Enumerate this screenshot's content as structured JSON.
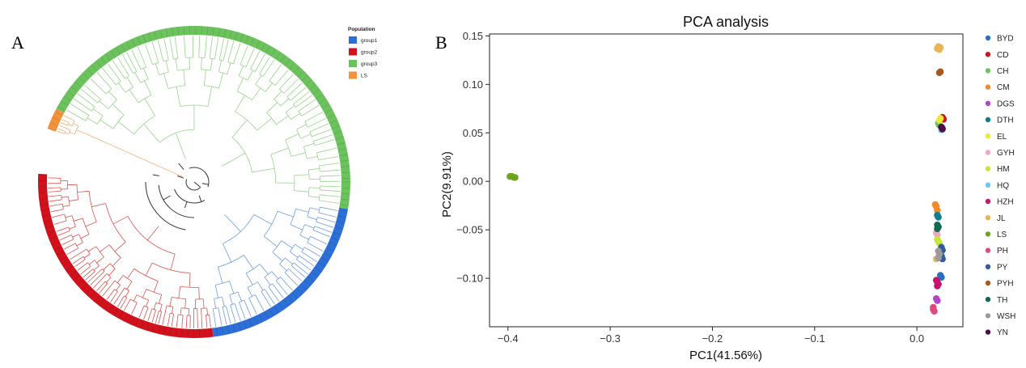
{
  "panels": {
    "a_label": "A",
    "b_label": "B"
  },
  "tree": {
    "legend_title": "Population",
    "groups": [
      {
        "key": "group1",
        "label": "group1",
        "color": "#2c6fd6",
        "line_color": "#6f9ee0"
      },
      {
        "key": "group2",
        "label": "group2",
        "color": "#d1111b",
        "line_color": "#d9534f"
      },
      {
        "key": "group3",
        "label": "group3",
        "color": "#6cc25c",
        "line_color": "#98d28c"
      },
      {
        "key": "LS",
        "label": "LS",
        "color": "#f2923b",
        "line_color": "#f2b27a"
      }
    ],
    "backbone_color": "#333333"
  },
  "chart_data": {
    "type": "scatter",
    "title": "PCA analysis",
    "xlabel": "PC1(41.56%)",
    "ylabel": "PC2(9.91%)",
    "xlim": [
      -0.418,
      0.045
    ],
    "ylim": [
      -0.15,
      0.152
    ],
    "xticks": [
      -0.4,
      -0.3,
      -0.2,
      -0.1,
      0.0
    ],
    "xtick_labels": [
      "−0.4",
      "−0.3",
      "−0.2",
      "−0.1",
      "0.0"
    ],
    "yticks": [
      0.15,
      0.1,
      0.05,
      0.0,
      -0.05,
      -0.1
    ],
    "ytick_labels": [
      "0.15",
      "0.10",
      "0.05",
      "0.00",
      "−0.05",
      "−0.10"
    ],
    "grid": false,
    "legend_position": "right",
    "series": [
      {
        "name": "BYD",
        "color": "#2e6fc0",
        "points": [
          [
            0.023,
            -0.097
          ],
          [
            0.024,
            -0.099
          ]
        ]
      },
      {
        "name": "CD",
        "color": "#c8191d",
        "points": [
          [
            0.025,
            0.066
          ],
          [
            0.026,
            0.064
          ]
        ]
      },
      {
        "name": "CH",
        "color": "#6cc25c",
        "points": [
          [
            0.021,
            0.06
          ],
          [
            0.022,
            0.058
          ]
        ]
      },
      {
        "name": "CM",
        "color": "#f08a2a",
        "points": [
          [
            0.018,
            -0.024
          ],
          [
            0.019,
            -0.026
          ],
          [
            0.02,
            -0.03
          ]
        ]
      },
      {
        "name": "DGS",
        "color": "#b046c9",
        "points": [
          [
            0.019,
            -0.121
          ],
          [
            0.02,
            -0.123
          ]
        ]
      },
      {
        "name": "DTH",
        "color": "#0f7f8c",
        "points": [
          [
            0.02,
            -0.035
          ],
          [
            0.021,
            -0.037
          ]
        ]
      },
      {
        "name": "EL",
        "color": "#ece83a",
        "points": [
          [
            0.023,
            0.065
          ],
          [
            0.022,
            0.063
          ]
        ]
      },
      {
        "name": "GYH",
        "color": "#f3a6bf",
        "points": [
          [
            0.019,
            -0.053
          ],
          [
            0.02,
            -0.055
          ]
        ]
      },
      {
        "name": "HM",
        "color": "#c5e63a",
        "points": [
          [
            0.021,
            -0.062
          ],
          [
            0.022,
            -0.064
          ],
          [
            0.02,
            -0.06
          ]
        ]
      },
      {
        "name": "HQ",
        "color": "#6fc7ef",
        "points": [
          [
            0.024,
            0.053
          ],
          [
            0.025,
            0.055
          ]
        ]
      },
      {
        "name": "HZH",
        "color": "#c8146a",
        "points": [
          [
            0.019,
            -0.102
          ],
          [
            0.02,
            -0.104
          ],
          [
            0.021,
            -0.106
          ],
          [
            0.02,
            -0.108
          ]
        ]
      },
      {
        "name": "JL",
        "color": "#e8b455",
        "points": [
          [
            0.02,
            0.137
          ],
          [
            0.021,
            0.139
          ],
          [
            0.022,
            0.136
          ],
          [
            0.023,
            0.138
          ],
          [
            0.019,
            -0.08
          ]
        ]
      },
      {
        "name": "LS",
        "color": "#6fa51e",
        "points": [
          [
            -0.396,
            0.005
          ],
          [
            -0.394,
            0.004
          ],
          [
            -0.398,
            0.005
          ],
          [
            -0.393,
            0.004
          ]
        ]
      },
      {
        "name": "PH",
        "color": "#e04880",
        "points": [
          [
            0.016,
            -0.132
          ],
          [
            0.017,
            -0.134
          ],
          [
            0.016,
            -0.13
          ]
        ]
      },
      {
        "name": "PY",
        "color": "#345b9c",
        "points": [
          [
            0.024,
            -0.068
          ],
          [
            0.025,
            -0.071
          ],
          [
            0.024,
            -0.077
          ],
          [
            0.025,
            -0.08
          ]
        ]
      },
      {
        "name": "PYH",
        "color": "#a8591a",
        "points": [
          [
            0.022,
            0.112
          ],
          [
            0.023,
            0.113
          ]
        ]
      },
      {
        "name": "TH",
        "color": "#126b4f",
        "points": [
          [
            0.02,
            -0.045
          ],
          [
            0.021,
            -0.047
          ],
          [
            0.02,
            -0.049
          ]
        ]
      },
      {
        "name": "WSH",
        "color": "#9b9b9b",
        "points": [
          [
            0.021,
            -0.072
          ],
          [
            0.022,
            -0.075
          ],
          [
            0.021,
            -0.079
          ]
        ]
      },
      {
        "name": "YN",
        "color": "#4d0f46",
        "points": [
          [
            0.024,
            0.056
          ],
          [
            0.025,
            0.054
          ]
        ]
      }
    ]
  }
}
